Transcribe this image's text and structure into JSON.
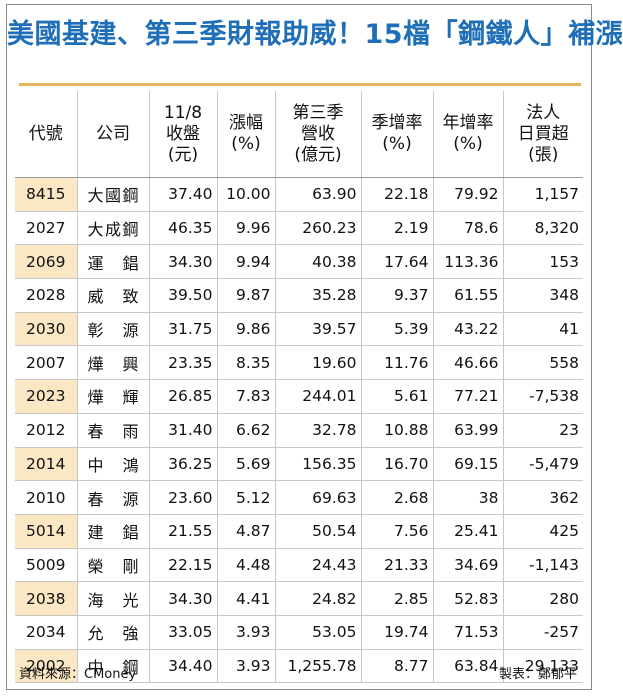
{
  "title": "美國基建、第三季財報助威！15檔「鋼鐵人」補漲",
  "columns": [
    [
      "代號"
    ],
    [
      "公司"
    ],
    [
      "11/8",
      "收盤",
      "(元)"
    ],
    [
      "漲幅",
      "(%)"
    ],
    [
      "第三季",
      "營收",
      "(億元)"
    ],
    [
      "季增率",
      "(%)"
    ],
    [
      "年增率",
      "(%)"
    ],
    [
      "法人",
      "日買超",
      "(張)"
    ]
  ],
  "rows": [
    {
      "code": "8415",
      "name": [
        "大",
        "國",
        "鋼"
      ],
      "close": "37.40",
      "change": "10.00",
      "q3_revenue": "63.90",
      "qoq": "22.18",
      "yoy": "79.92",
      "inst": "1,157",
      "shaded": true
    },
    {
      "code": "2027",
      "name": [
        "大",
        "成",
        "鋼"
      ],
      "close": "46.35",
      "change": "9.96",
      "q3_revenue": "260.23",
      "qoq": "2.19",
      "yoy": "78.6",
      "inst": "8,320",
      "shaded": false
    },
    {
      "code": "2069",
      "name": [
        "運",
        "",
        "錩"
      ],
      "close": "34.30",
      "change": "9.94",
      "q3_revenue": "40.38",
      "qoq": "17.64",
      "yoy": "113.36",
      "inst": "153",
      "shaded": true
    },
    {
      "code": "2028",
      "name": [
        "威",
        "",
        "致"
      ],
      "close": "39.50",
      "change": "9.87",
      "q3_revenue": "35.28",
      "qoq": "9.37",
      "yoy": "61.55",
      "inst": "348",
      "shaded": false
    },
    {
      "code": "2030",
      "name": [
        "彰",
        "",
        "源"
      ],
      "close": "31.75",
      "change": "9.86",
      "q3_revenue": "39.57",
      "qoq": "5.39",
      "yoy": "43.22",
      "inst": "41",
      "shaded": true
    },
    {
      "code": "2007",
      "name": [
        "燁",
        "",
        "興"
      ],
      "close": "23.35",
      "change": "8.35",
      "q3_revenue": "19.60",
      "qoq": "11.76",
      "yoy": "46.66",
      "inst": "558",
      "shaded": false
    },
    {
      "code": "2023",
      "name": [
        "燁",
        "",
        "輝"
      ],
      "close": "26.85",
      "change": "7.83",
      "q3_revenue": "244.01",
      "qoq": "5.61",
      "yoy": "77.21",
      "inst": "-7,538",
      "shaded": true
    },
    {
      "code": "2012",
      "name": [
        "春",
        "",
        "雨"
      ],
      "close": "31.40",
      "change": "6.62",
      "q3_revenue": "32.78",
      "qoq": "10.88",
      "yoy": "63.99",
      "inst": "23",
      "shaded": false
    },
    {
      "code": "2014",
      "name": [
        "中",
        "",
        "鴻"
      ],
      "close": "36.25",
      "change": "5.69",
      "q3_revenue": "156.35",
      "qoq": "16.70",
      "yoy": "69.15",
      "inst": "-5,479",
      "shaded": true
    },
    {
      "code": "2010",
      "name": [
        "春",
        "",
        "源"
      ],
      "close": "23.60",
      "change": "5.12",
      "q3_revenue": "69.63",
      "qoq": "2.68",
      "yoy": "38",
      "inst": "362",
      "shaded": false
    },
    {
      "code": "5014",
      "name": [
        "建",
        "",
        "錩"
      ],
      "close": "21.55",
      "change": "4.87",
      "q3_revenue": "50.54",
      "qoq": "7.56",
      "yoy": "25.41",
      "inst": "425",
      "shaded": true
    },
    {
      "code": "5009",
      "name": [
        "榮",
        "",
        "剛"
      ],
      "close": "22.15",
      "change": "4.48",
      "q3_revenue": "24.43",
      "qoq": "21.33",
      "yoy": "34.69",
      "inst": "-1,143",
      "shaded": false
    },
    {
      "code": "2038",
      "name": [
        "海",
        "",
        "光"
      ],
      "close": "34.30",
      "change": "4.41",
      "q3_revenue": "24.82",
      "qoq": "2.85",
      "yoy": "52.83",
      "inst": "280",
      "shaded": true
    },
    {
      "code": "2034",
      "name": [
        "允",
        "",
        "強"
      ],
      "close": "33.05",
      "change": "3.93",
      "q3_revenue": "53.05",
      "qoq": "19.74",
      "yoy": "71.53",
      "inst": "-257",
      "shaded": false
    },
    {
      "code": "2002",
      "name": [
        "中",
        "",
        "鋼"
      ],
      "close": "34.40",
      "change": "3.93",
      "q3_revenue": "1,255.78",
      "qoq": "8.77",
      "yoy": "63.84",
      "inst": "29,133",
      "shaded": true
    }
  ],
  "source": "資料來源：CMoney",
  "credit": "製表：鄭郁平",
  "colors": {
    "title": "#1f6fb8",
    "rule": "#e8b45c",
    "shade": "#fbe7c4"
  }
}
